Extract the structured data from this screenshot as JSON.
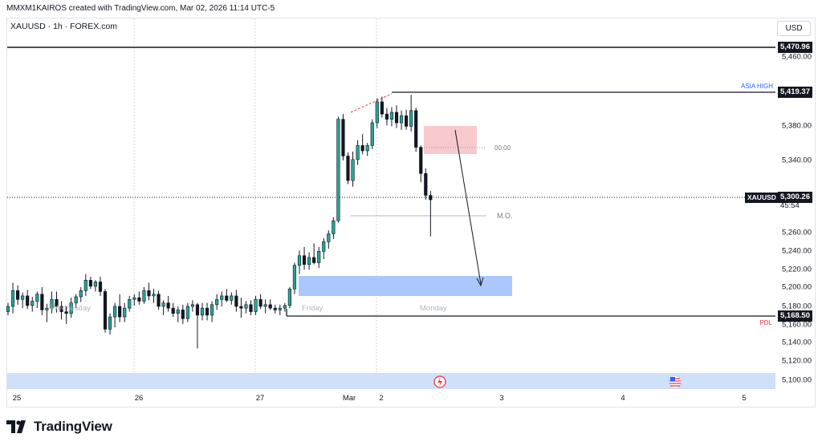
{
  "header": {
    "credit": "MMXM1KAIROS created with TradingView.com, Mar 02, 2026 11:14 UTC-5"
  },
  "symbol": {
    "title": "XAUUSD · 1h · FOREX.com",
    "currency": "USD"
  },
  "price_scale": {
    "ticks": [
      "5,460.00",
      "5,380.00",
      "5,340.00",
      "5,260.00",
      "5,240.00",
      "5,220.00",
      "5,200.00",
      "5,180.00",
      "5,160.00",
      "5,140.00",
      "5,120.00",
      "5,100.00"
    ],
    "tags": {
      "high_line": "5,470.96",
      "asia_high": "5,419.37",
      "current": "5,300.26",
      "countdown": "45:54",
      "symbol_tag": "XAUUSD",
      "pdl": "5,168.50"
    }
  },
  "time_axis": {
    "ticks": [
      "25",
      "26",
      "27",
      "Mar",
      "2",
      "3",
      "4",
      "5"
    ]
  },
  "annotations": {
    "asia_high_label": "ASIA HIGH",
    "pdl_label": "PDL",
    "time_label": "00:00",
    "mo_label": "M.O.",
    "session_labels": [
      "Wednesday",
      "Friday",
      "Monday"
    ]
  },
  "colors": {
    "up": "#26a69a",
    "down": "#131722",
    "supply_zone": "#f8c9cc",
    "demand_zone": "#aac8fb",
    "asia_high_text": "#2962ff",
    "pdl_text": "#f23645",
    "grid": "#d7d9df"
  },
  "footer": {
    "brand": "TradingView"
  },
  "chart_data": {
    "type": "candlestick",
    "symbol": "XAUUSD",
    "timeframe": "1h",
    "x_axis": {
      "labels": [
        "25",
        "26",
        "27",
        "Mar",
        "2",
        "3",
        "4",
        "5"
      ]
    },
    "y_axis": {
      "range": [
        5095,
        5478
      ]
    },
    "candles": [
      {
        "o": 5172,
        "h": 5182,
        "l": 5168,
        "c": 5178
      },
      {
        "o": 5178,
        "h": 5205,
        "l": 5170,
        "c": 5196
      },
      {
        "o": 5196,
        "h": 5202,
        "l": 5180,
        "c": 5186
      },
      {
        "o": 5186,
        "h": 5194,
        "l": 5176,
        "c": 5190
      },
      {
        "o": 5190,
        "h": 5197,
        "l": 5175,
        "c": 5179
      },
      {
        "o": 5179,
        "h": 5189,
        "l": 5172,
        "c": 5184
      },
      {
        "o": 5184,
        "h": 5195,
        "l": 5176,
        "c": 5192
      },
      {
        "o": 5192,
        "h": 5200,
        "l": 5168,
        "c": 5174
      },
      {
        "o": 5174,
        "h": 5181,
        "l": 5160,
        "c": 5176
      },
      {
        "o": 5176,
        "h": 5195,
        "l": 5170,
        "c": 5186
      },
      {
        "o": 5186,
        "h": 5195,
        "l": 5171,
        "c": 5178
      },
      {
        "o": 5178,
        "h": 5184,
        "l": 5163,
        "c": 5172
      },
      {
        "o": 5172,
        "h": 5178,
        "l": 5158,
        "c": 5170
      },
      {
        "o": 5170,
        "h": 5188,
        "l": 5165,
        "c": 5182
      },
      {
        "o": 5182,
        "h": 5192,
        "l": 5176,
        "c": 5189
      },
      {
        "o": 5189,
        "h": 5200,
        "l": 5183,
        "c": 5196
      },
      {
        "o": 5196,
        "h": 5215,
        "l": 5190,
        "c": 5208
      },
      {
        "o": 5208,
        "h": 5212,
        "l": 5198,
        "c": 5201
      },
      {
        "o": 5201,
        "h": 5208,
        "l": 5195,
        "c": 5206
      },
      {
        "o": 5206,
        "h": 5212,
        "l": 5190,
        "c": 5195
      },
      {
        "o": 5195,
        "h": 5198,
        "l": 5148,
        "c": 5152
      },
      {
        "o": 5152,
        "h": 5170,
        "l": 5146,
        "c": 5166
      },
      {
        "o": 5166,
        "h": 5182,
        "l": 5154,
        "c": 5178
      },
      {
        "o": 5178,
        "h": 5192,
        "l": 5160,
        "c": 5166
      },
      {
        "o": 5166,
        "h": 5182,
        "l": 5160,
        "c": 5176
      },
      {
        "o": 5176,
        "h": 5190,
        "l": 5172,
        "c": 5186
      },
      {
        "o": 5186,
        "h": 5192,
        "l": 5179,
        "c": 5188
      },
      {
        "o": 5188,
        "h": 5195,
        "l": 5180,
        "c": 5184
      },
      {
        "o": 5184,
        "h": 5200,
        "l": 5181,
        "c": 5196
      },
      {
        "o": 5196,
        "h": 5205,
        "l": 5185,
        "c": 5190
      },
      {
        "o": 5190,
        "h": 5198,
        "l": 5182,
        "c": 5192
      },
      {
        "o": 5192,
        "h": 5196,
        "l": 5174,
        "c": 5178
      },
      {
        "o": 5178,
        "h": 5185,
        "l": 5168,
        "c": 5182
      },
      {
        "o": 5182,
        "h": 5190,
        "l": 5172,
        "c": 5176
      },
      {
        "o": 5176,
        "h": 5182,
        "l": 5166,
        "c": 5170
      },
      {
        "o": 5170,
        "h": 5178,
        "l": 5160,
        "c": 5174
      },
      {
        "o": 5174,
        "h": 5180,
        "l": 5158,
        "c": 5164
      },
      {
        "o": 5164,
        "h": 5182,
        "l": 5160,
        "c": 5178
      },
      {
        "o": 5178,
        "h": 5185,
        "l": 5172,
        "c": 5180
      },
      {
        "o": 5180,
        "h": 5182,
        "l": 5130,
        "c": 5168
      },
      {
        "o": 5168,
        "h": 5182,
        "l": 5162,
        "c": 5176
      },
      {
        "o": 5176,
        "h": 5182,
        "l": 5162,
        "c": 5168
      },
      {
        "o": 5168,
        "h": 5184,
        "l": 5160,
        "c": 5180
      },
      {
        "o": 5180,
        "h": 5192,
        "l": 5174,
        "c": 5186
      },
      {
        "o": 5186,
        "h": 5195,
        "l": 5178,
        "c": 5190
      },
      {
        "o": 5190,
        "h": 5198,
        "l": 5183,
        "c": 5185
      },
      {
        "o": 5185,
        "h": 5194,
        "l": 5180,
        "c": 5190
      },
      {
        "o": 5190,
        "h": 5197,
        "l": 5172,
        "c": 5178
      },
      {
        "o": 5178,
        "h": 5188,
        "l": 5165,
        "c": 5176
      },
      {
        "o": 5176,
        "h": 5184,
        "l": 5170,
        "c": 5180
      },
      {
        "o": 5180,
        "h": 5185,
        "l": 5168,
        "c": 5172
      },
      {
        "o": 5172,
        "h": 5190,
        "l": 5168,
        "c": 5186
      },
      {
        "o": 5186,
        "h": 5192,
        "l": 5175,
        "c": 5178
      },
      {
        "o": 5178,
        "h": 5186,
        "l": 5170,
        "c": 5180
      },
      {
        "o": 5180,
        "h": 5186,
        "l": 5174,
        "c": 5176
      },
      {
        "o": 5176,
        "h": 5180,
        "l": 5170,
        "c": 5174
      },
      {
        "o": 5174,
        "h": 5180,
        "l": 5168,
        "c": 5176
      },
      {
        "o": 5176,
        "h": 5182,
        "l": 5172,
        "c": 5179
      },
      {
        "o": 5179,
        "h": 5200,
        "l": 5176,
        "c": 5198
      },
      {
        "o": 5198,
        "h": 5228,
        "l": 5192,
        "c": 5225
      },
      {
        "o": 5225,
        "h": 5242,
        "l": 5215,
        "c": 5236
      },
      {
        "o": 5236,
        "h": 5246,
        "l": 5220,
        "c": 5226
      },
      {
        "o": 5226,
        "h": 5240,
        "l": 5220,
        "c": 5234
      },
      {
        "o": 5234,
        "h": 5250,
        "l": 5226,
        "c": 5228
      },
      {
        "o": 5228,
        "h": 5246,
        "l": 5222,
        "c": 5241
      },
      {
        "o": 5241,
        "h": 5256,
        "l": 5232,
        "c": 5252
      },
      {
        "o": 5252,
        "h": 5265,
        "l": 5244,
        "c": 5261
      },
      {
        "o": 5261,
        "h": 5280,
        "l": 5255,
        "c": 5276
      },
      {
        "o": 5276,
        "h": 5395,
        "l": 5274,
        "c": 5392
      },
      {
        "o": 5392,
        "h": 5398,
        "l": 5345,
        "c": 5350
      },
      {
        "o": 5350,
        "h": 5354,
        "l": 5318,
        "c": 5322
      },
      {
        "o": 5322,
        "h": 5355,
        "l": 5315,
        "c": 5346
      },
      {
        "o": 5346,
        "h": 5368,
        "l": 5340,
        "c": 5362
      },
      {
        "o": 5362,
        "h": 5375,
        "l": 5352,
        "c": 5356
      },
      {
        "o": 5356,
        "h": 5365,
        "l": 5350,
        "c": 5362
      },
      {
        "o": 5362,
        "h": 5392,
        "l": 5358,
        "c": 5388
      },
      {
        "o": 5388,
        "h": 5416,
        "l": 5382,
        "c": 5412
      },
      {
        "o": 5412,
        "h": 5418,
        "l": 5394,
        "c": 5398
      },
      {
        "o": 5398,
        "h": 5405,
        "l": 5385,
        "c": 5392
      },
      {
        "o": 5392,
        "h": 5406,
        "l": 5384,
        "c": 5400
      },
      {
        "o": 5400,
        "h": 5408,
        "l": 5382,
        "c": 5388
      },
      {
        "o": 5388,
        "h": 5402,
        "l": 5380,
        "c": 5396
      },
      {
        "o": 5396,
        "h": 5403,
        "l": 5380,
        "c": 5384
      },
      {
        "o": 5384,
        "h": 5420,
        "l": 5378,
        "c": 5402
      },
      {
        "o": 5402,
        "h": 5405,
        "l": 5355,
        "c": 5360
      },
      {
        "o": 5360,
        "h": 5362,
        "l": 5320,
        "c": 5330
      },
      {
        "o": 5330,
        "h": 5336,
        "l": 5300,
        "c": 5305
      },
      {
        "o": 5305,
        "h": 5310,
        "l": 5258,
        "c": 5300
      }
    ],
    "levels": [
      {
        "label": "",
        "value": 5470.96
      },
      {
        "label": "ASIA HIGH",
        "value": 5419.37
      },
      {
        "label": "PDL",
        "value": 5168.5
      },
      {
        "label": "M.O.",
        "value": 5278
      }
    ],
    "zones": [
      {
        "type": "supply",
        "from": 5350,
        "to": 5384
      },
      {
        "type": "demand",
        "from": 5191,
        "to": 5215
      },
      {
        "type": "band",
        "from": 5093,
        "to": 5111
      }
    ],
    "projection": {
      "from": 5378,
      "to": 5200
    }
  }
}
